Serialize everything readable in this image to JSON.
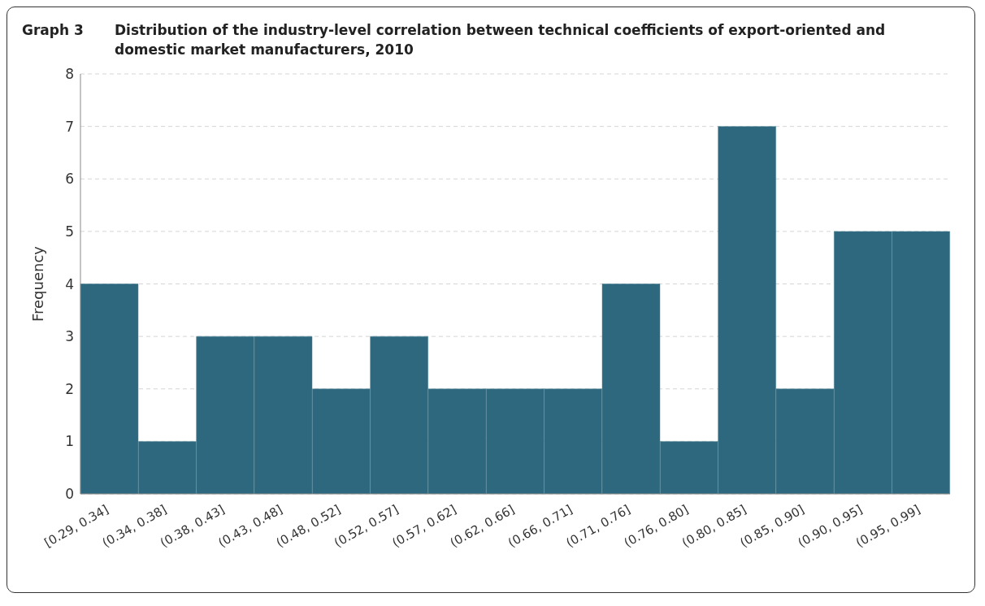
{
  "chart_data": {
    "type": "bar",
    "title": "Graph 3",
    "subtitle": "Distribution of the industry-level correlation between technical coefficients of export-oriented and domestic market manufacturers, 2010",
    "ylabel": "Frequency",
    "categories": [
      "[0.29, 0.34]",
      "(0.34, 0.38]",
      "(0.38, 0.43]",
      "(0.43, 0.48]",
      "(0.48, 0.52]",
      "(0.52, 0.57]",
      "(0.57, 0.62]",
      "(0.62, 0.66]",
      "(0.66, 0.71]",
      "(0.71, 0.76]",
      "(0.76, 0.80]",
      "(0.80, 0.85]",
      "(0.85, 0.90]",
      "(0.90, 0.95]",
      "(0.95, 0.99]"
    ],
    "values": [
      4,
      1,
      3,
      3,
      2,
      3,
      2,
      2,
      2,
      4,
      1,
      7,
      2,
      5,
      5
    ],
    "color": "#2e687e",
    "ylim": [
      0,
      8
    ],
    "yticks": [
      0,
      1,
      2,
      3,
      4,
      5,
      6,
      7,
      8
    ],
    "grid": "y"
  }
}
